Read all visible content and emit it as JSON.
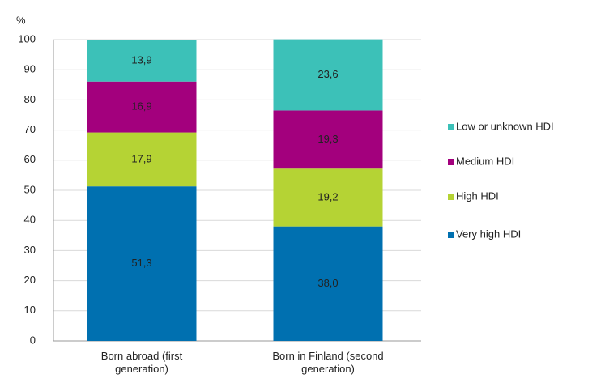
{
  "chart_data": {
    "type": "stacked_bar",
    "y_label": "%",
    "categories": [
      "Born abroad (first generation)",
      "Born in Finland (second generation)"
    ],
    "series": [
      {
        "name": "Very high HDI",
        "color": "#0070b0",
        "values": [
          51.3,
          38.0
        ],
        "value_labels": [
          "51,3",
          "38,0"
        ]
      },
      {
        "name": "High HDI",
        "color": "#b5d334",
        "values": [
          17.9,
          19.2
        ],
        "value_labels": [
          "17,9",
          "19,2"
        ]
      },
      {
        "name": "Medium HDI",
        "color": "#a3007d",
        "values": [
          16.9,
          19.3
        ],
        "value_labels": [
          "16,9",
          "19,3"
        ]
      },
      {
        "name": "Low or unknown HDI",
        "color": "#3cc1b8",
        "values": [
          13.9,
          23.6
        ],
        "value_labels": [
          "13,9",
          "23,6"
        ]
      }
    ],
    "ylim": [
      0,
      100
    ],
    "yticks": [
      0,
      10,
      20,
      30,
      40,
      50,
      60,
      70,
      80,
      90,
      100
    ],
    "grid": true,
    "legend": "right"
  }
}
